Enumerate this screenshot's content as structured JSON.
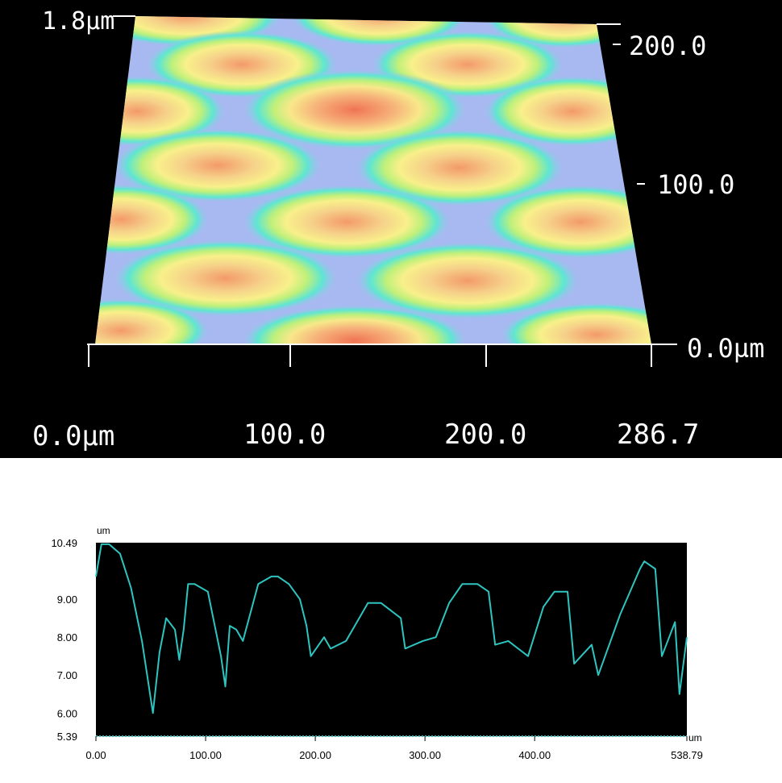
{
  "afm_view": {
    "z_top_label": "1.8µm",
    "y_ticks": [
      "200.0",
      "100.0",
      "0.0µm"
    ],
    "x_ticks": [
      "0.0µm",
      "100.0",
      "200.0",
      "286.7"
    ],
    "colors": {
      "background": "#000000",
      "low": "#8ea8f0",
      "mid": "#4fe0e0",
      "midhigh": "#c8f070",
      "high": "#f8e080",
      "peak": "#f07050"
    }
  },
  "chart_data": {
    "type": "line",
    "title": "",
    "xlabel": "",
    "ylabel": "",
    "x_unit": "um",
    "y_unit": "um",
    "xlim": [
      0,
      538.79
    ],
    "ylim": [
      5.39,
      10.49
    ],
    "x_tick_labels": [
      "0.00",
      "100.00",
      "200.00",
      "300.00",
      "400.00",
      "538.79"
    ],
    "y_tick_labels": [
      "10.49",
      "9.00",
      "8.00",
      "7.00",
      "6.00",
      "5.39"
    ],
    "series": [
      {
        "color": "#2ec4c0",
        "x": [
          0,
          5,
          12,
          22,
          32,
          42,
          52,
          58,
          64,
          72,
          76,
          80,
          84,
          90,
          102,
          114,
          118,
          122,
          128,
          134,
          148,
          160,
          166,
          176,
          186,
          192,
          196,
          208,
          214,
          228,
          248,
          260,
          278,
          282,
          298,
          310,
          322,
          334,
          348,
          358,
          364,
          376,
          394,
          408,
          418,
          430,
          436,
          452,
          458,
          478,
          496,
          500,
          510,
          516,
          528,
          532,
          538.79
        ],
        "y": [
          9.6,
          10.45,
          10.45,
          10.2,
          9.3,
          7.9,
          6.0,
          7.6,
          8.5,
          8.2,
          7.4,
          8.2,
          9.4,
          9.4,
          9.2,
          7.5,
          6.7,
          8.3,
          8.2,
          7.9,
          9.4,
          9.6,
          9.6,
          9.4,
          9.0,
          8.3,
          7.5,
          8.0,
          7.7,
          7.9,
          8.9,
          8.9,
          8.5,
          7.7,
          7.9,
          8.0,
          8.9,
          9.4,
          9.4,
          9.2,
          7.8,
          7.9,
          7.5,
          8.8,
          9.2,
          9.2,
          7.3,
          7.8,
          7.0,
          8.6,
          9.8,
          10.0,
          9.8,
          7.5,
          8.4,
          6.5,
          8.0
        ]
      }
    ]
  }
}
